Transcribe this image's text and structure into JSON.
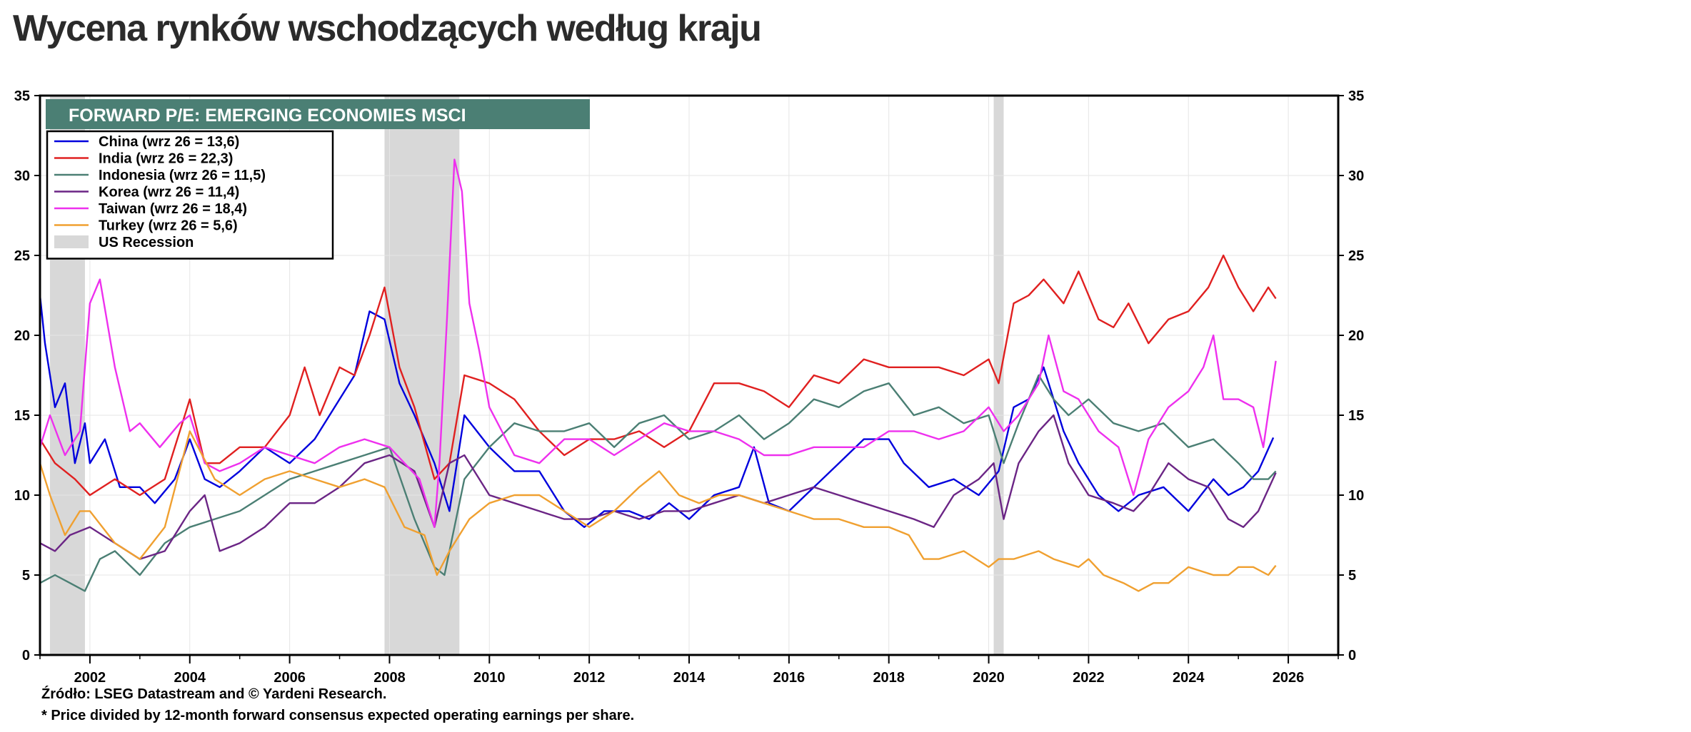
{
  "page": {
    "title": "Wycena rynków wschodzących według kraju"
  },
  "chart_data": {
    "type": "line",
    "title": "FORWARD P/E: EMERGING ECONOMIES  MSCI",
    "xlim": [
      2001.0,
      2027.0
    ],
    "ylim": [
      0,
      35
    ],
    "x_ticks": [
      2002,
      2004,
      2006,
      2008,
      2010,
      2012,
      2014,
      2016,
      2018,
      2020,
      2022,
      2024,
      2026
    ],
    "y_ticks": [
      0,
      5,
      10,
      15,
      20,
      25,
      30,
      35
    ],
    "grid": true,
    "legend_position": "top-left",
    "recessions": [
      {
        "label": "US Recession",
        "start": 2001.2,
        "end": 2001.9,
        "color": "#d8d8d8"
      },
      {
        "start": 2007.9,
        "end": 2009.4
      },
      {
        "start": 2020.1,
        "end": 2020.3
      }
    ],
    "series": [
      {
        "name": "China (wrz 26 = 13,6)",
        "color": "#0000dd",
        "x": [
          2001.0,
          2001.1,
          2001.3,
          2001.5,
          2001.7,
          2001.9,
          2002.0,
          2002.3,
          2002.6,
          2003.0,
          2003.3,
          2003.7,
          2004.0,
          2004.3,
          2004.6,
          2005.0,
          2005.5,
          2006.0,
          2006.5,
          2007.0,
          2007.3,
          2007.6,
          2007.9,
          2008.2,
          2008.5,
          2008.9,
          2009.2,
          2009.5,
          2010.0,
          2010.5,
          2011.0,
          2011.5,
          2011.9,
          2012.3,
          2012.8,
          2013.2,
          2013.6,
          2014.0,
          2014.5,
          2015.0,
          2015.3,
          2015.6,
          2016.0,
          2016.5,
          2017.0,
          2017.5,
          2018.0,
          2018.3,
          2018.8,
          2019.3,
          2019.8,
          2020.2,
          2020.5,
          2020.8,
          2021.1,
          2021.5,
          2021.8,
          2022.2,
          2022.6,
          2023.0,
          2023.5,
          2024.0,
          2024.5,
          2024.8,
          2025.1,
          2025.4,
          2025.7
        ],
        "values": [
          22.5,
          19.5,
          15.5,
          17.0,
          12.0,
          14.5,
          12.0,
          13.5,
          10.5,
          10.5,
          9.5,
          11.0,
          13.5,
          11.0,
          10.5,
          11.5,
          13.0,
          12.0,
          13.5,
          16.0,
          17.5,
          21.5,
          21.0,
          17.0,
          15.0,
          12.0,
          9.0,
          15.0,
          13.0,
          11.5,
          11.5,
          9.0,
          8.0,
          9.0,
          9.0,
          8.5,
          9.5,
          8.5,
          10.0,
          10.5,
          13.0,
          9.5,
          9.0,
          10.5,
          12.0,
          13.5,
          13.5,
          12.0,
          10.5,
          11.0,
          10.0,
          11.5,
          15.5,
          16.0,
          18.0,
          14.0,
          12.0,
          10.0,
          9.0,
          10.0,
          10.5,
          9.0,
          11.0,
          10.0,
          10.5,
          11.5,
          13.6
        ]
      },
      {
        "name": "India (wrz 26 = 22,3)",
        "color": "#e02020",
        "x": [
          2001.0,
          2001.3,
          2001.7,
          2002.0,
          2002.5,
          2003.0,
          2003.5,
          2004.0,
          2004.3,
          2004.6,
          2005.0,
          2005.5,
          2006.0,
          2006.3,
          2006.6,
          2007.0,
          2007.3,
          2007.6,
          2007.9,
          2008.2,
          2008.5,
          2008.9,
          2009.2,
          2009.5,
          2010.0,
          2010.5,
          2011.0,
          2011.5,
          2012.0,
          2012.5,
          2013.0,
          2013.5,
          2014.0,
          2014.5,
          2015.0,
          2015.5,
          2016.0,
          2016.5,
          2017.0,
          2017.5,
          2018.0,
          2018.5,
          2019.0,
          2019.5,
          2020.0,
          2020.2,
          2020.5,
          2020.8,
          2021.1,
          2021.5,
          2021.8,
          2022.2,
          2022.5,
          2022.8,
          2023.2,
          2023.6,
          2024.0,
          2024.4,
          2024.7,
          2025.0,
          2025.3,
          2025.6,
          2025.75
        ],
        "values": [
          13.5,
          12.0,
          11.0,
          10.0,
          11.0,
          10.0,
          11.0,
          16.0,
          12.0,
          12.0,
          13.0,
          13.0,
          15.0,
          18.0,
          15.0,
          18.0,
          17.5,
          20.0,
          23.0,
          18.0,
          15.5,
          11.0,
          12.0,
          17.5,
          17.0,
          16.0,
          14.0,
          12.5,
          13.5,
          13.5,
          14.0,
          13.0,
          14.0,
          17.0,
          17.0,
          16.5,
          15.5,
          17.5,
          17.0,
          18.5,
          18.0,
          18.0,
          18.0,
          17.5,
          18.5,
          17.0,
          22.0,
          22.5,
          23.5,
          22.0,
          24.0,
          21.0,
          20.5,
          22.0,
          19.5,
          21.0,
          21.5,
          23.0,
          25.0,
          23.0,
          21.5,
          23.0,
          22.3
        ]
      },
      {
        "name": "Indonesia (wrz 26 = 11,5)",
        "color": "#4b7f74",
        "x": [
          2001.0,
          2001.3,
          2001.6,
          2001.9,
          2002.2,
          2002.5,
          2003.0,
          2003.5,
          2004.0,
          2004.5,
          2005.0,
          2005.5,
          2006.0,
          2006.5,
          2007.0,
          2007.5,
          2008.0,
          2008.5,
          2008.9,
          2009.1,
          2009.5,
          2010.0,
          2010.5,
          2011.0,
          2011.5,
          2012.0,
          2012.5,
          2013.0,
          2013.5,
          2014.0,
          2014.5,
          2015.0,
          2015.5,
          2016.0,
          2016.5,
          2017.0,
          2017.5,
          2018.0,
          2018.5,
          2019.0,
          2019.5,
          2020.0,
          2020.3,
          2020.6,
          2021.0,
          2021.3,
          2021.6,
          2022.0,
          2022.5,
          2023.0,
          2023.5,
          2024.0,
          2024.5,
          2025.0,
          2025.3,
          2025.6,
          2025.75
        ],
        "values": [
          4.5,
          5.0,
          4.5,
          4.0,
          6.0,
          6.5,
          5.0,
          7.0,
          8.0,
          8.5,
          9.0,
          10.0,
          11.0,
          11.5,
          12.0,
          12.5,
          13.0,
          8.5,
          5.5,
          5.0,
          11.0,
          13.0,
          14.5,
          14.0,
          14.0,
          14.5,
          13.0,
          14.5,
          15.0,
          13.5,
          14.0,
          15.0,
          13.5,
          14.5,
          16.0,
          15.5,
          16.5,
          17.0,
          15.0,
          15.5,
          14.5,
          15.0,
          12.0,
          14.5,
          17.5,
          16.0,
          15.0,
          16.0,
          14.5,
          14.0,
          14.5,
          13.0,
          13.5,
          12.0,
          11.0,
          11.0,
          11.5
        ]
      },
      {
        "name": "Korea (wrz 26 = 11,4)",
        "color": "#6b2585",
        "x": [
          2001.0,
          2001.3,
          2001.6,
          2002.0,
          2002.5,
          2003.0,
          2003.5,
          2004.0,
          2004.3,
          2004.6,
          2005.0,
          2005.5,
          2006.0,
          2006.5,
          2007.0,
          2007.5,
          2008.0,
          2008.5,
          2008.9,
          2009.2,
          2009.5,
          2010.0,
          2010.5,
          2011.0,
          2011.5,
          2012.0,
          2012.5,
          2013.0,
          2013.5,
          2014.0,
          2014.5,
          2015.0,
          2015.5,
          2016.0,
          2016.5,
          2017.0,
          2017.5,
          2018.0,
          2018.5,
          2018.9,
          2019.3,
          2019.8,
          2020.1,
          2020.3,
          2020.6,
          2021.0,
          2021.3,
          2021.6,
          2022.0,
          2022.5,
          2022.9,
          2023.2,
          2023.6,
          2024.0,
          2024.4,
          2024.8,
          2025.1,
          2025.4,
          2025.75
        ],
        "values": [
          7.0,
          6.5,
          7.5,
          8.0,
          7.0,
          6.0,
          6.5,
          9.0,
          10.0,
          6.5,
          7.0,
          8.0,
          9.5,
          9.5,
          10.5,
          12.0,
          12.5,
          11.5,
          8.0,
          12.0,
          12.5,
          10.0,
          9.5,
          9.0,
          8.5,
          8.5,
          9.0,
          8.5,
          9.0,
          9.0,
          9.5,
          10.0,
          9.5,
          10.0,
          10.5,
          10.0,
          9.5,
          9.0,
          8.5,
          8.0,
          10.0,
          11.0,
          12.0,
          8.5,
          12.0,
          14.0,
          15.0,
          12.0,
          10.0,
          9.5,
          9.0,
          10.0,
          12.0,
          11.0,
          10.5,
          8.5,
          8.0,
          9.0,
          11.4
        ]
      },
      {
        "name": "Taiwan (wrz 26 = 18,4)",
        "color": "#ee30ee",
        "x": [
          2001.0,
          2001.2,
          2001.5,
          2001.8,
          2002.0,
          2002.2,
          2002.5,
          2002.8,
          2003.0,
          2003.4,
          2003.8,
          2004.0,
          2004.3,
          2004.6,
          2005.0,
          2005.5,
          2006.0,
          2006.5,
          2007.0,
          2007.5,
          2008.0,
          2008.3,
          2008.6,
          2008.9,
          2009.0,
          2009.15,
          2009.3,
          2009.45,
          2009.6,
          2009.8,
          2010.0,
          2010.5,
          2011.0,
          2011.5,
          2012.0,
          2012.5,
          2013.0,
          2013.5,
          2014.0,
          2014.5,
          2015.0,
          2015.5,
          2016.0,
          2016.5,
          2017.0,
          2017.5,
          2018.0,
          2018.5,
          2019.0,
          2019.5,
          2020.0,
          2020.3,
          2020.6,
          2021.0,
          2021.2,
          2021.5,
          2021.8,
          2022.2,
          2022.6,
          2022.9,
          2023.2,
          2023.6,
          2024.0,
          2024.3,
          2024.5,
          2024.7,
          2025.0,
          2025.3,
          2025.5,
          2025.75
        ],
        "values": [
          13.0,
          15.0,
          12.5,
          14.0,
          22.0,
          23.5,
          18.0,
          14.0,
          14.5,
          13.0,
          14.5,
          15.0,
          12.0,
          11.5,
          12.0,
          13.0,
          12.5,
          12.0,
          13.0,
          13.5,
          13.0,
          12.0,
          11.0,
          8.0,
          12.0,
          21.0,
          31.0,
          29.0,
          22.0,
          19.0,
          15.5,
          12.5,
          12.0,
          13.5,
          13.5,
          12.5,
          13.5,
          14.5,
          14.0,
          14.0,
          13.5,
          12.5,
          12.5,
          13.0,
          13.0,
          13.0,
          14.0,
          14.0,
          13.5,
          14.0,
          15.5,
          14.0,
          15.0,
          17.0,
          20.0,
          16.5,
          16.0,
          14.0,
          13.0,
          10.0,
          13.5,
          15.5,
          16.5,
          18.0,
          20.0,
          16.0,
          16.0,
          15.5,
          13.0,
          18.4
        ]
      },
      {
        "name": "Turkey (wrz 26 = 5,6)",
        "color": "#f0a030",
        "x": [
          2001.0,
          2001.2,
          2001.5,
          2001.8,
          2002.0,
          2002.5,
          2003.0,
          2003.5,
          2004.0,
          2004.5,
          2005.0,
          2005.5,
          2006.0,
          2006.5,
          2007.0,
          2007.5,
          2007.9,
          2008.3,
          2008.7,
          2008.95,
          2009.2,
          2009.6,
          2010.0,
          2010.5,
          2011.0,
          2011.5,
          2012.0,
          2012.5,
          2013.0,
          2013.4,
          2013.8,
          2014.2,
          2014.6,
          2015.0,
          2015.5,
          2016.0,
          2016.5,
          2017.0,
          2017.5,
          2018.0,
          2018.4,
          2018.7,
          2019.0,
          2019.5,
          2020.0,
          2020.2,
          2020.5,
          2021.0,
          2021.3,
          2021.8,
          2022.0,
          2022.3,
          2022.7,
          2023.0,
          2023.3,
          2023.6,
          2024.0,
          2024.5,
          2024.8,
          2025.0,
          2025.3,
          2025.6,
          2025.75
        ],
        "values": [
          12.0,
          10.0,
          7.5,
          9.0,
          9.0,
          7.0,
          6.0,
          8.0,
          14.0,
          11.0,
          10.0,
          11.0,
          11.5,
          11.0,
          10.5,
          11.0,
          10.5,
          8.0,
          7.5,
          5.0,
          6.5,
          8.5,
          9.5,
          10.0,
          10.0,
          9.0,
          8.0,
          9.0,
          10.5,
          11.5,
          10.0,
          9.5,
          10.0,
          10.0,
          9.5,
          9.0,
          8.5,
          8.5,
          8.0,
          8.0,
          7.5,
          6.0,
          6.0,
          6.5,
          5.5,
          6.0,
          6.0,
          6.5,
          6.0,
          5.5,
          6.0,
          5.0,
          4.5,
          4.0,
          4.5,
          4.5,
          5.5,
          5.0,
          5.0,
          5.5,
          5.5,
          5.0,
          5.6
        ]
      }
    ],
    "footnotes": {
      "source": "Źródło: LSEG Datastream and © Yardeni Research.",
      "note": "* Price divided by 12-month forward consensus expected operating earnings per share."
    }
  }
}
